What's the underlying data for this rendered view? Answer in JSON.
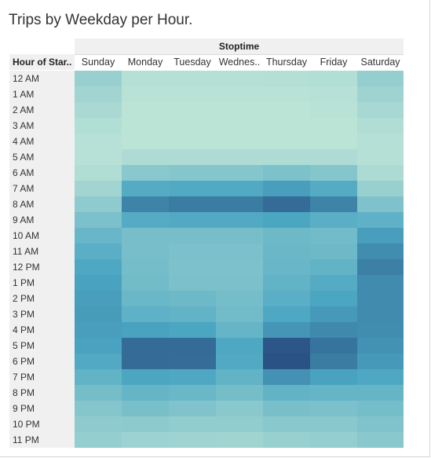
{
  "title": "Trips by Weekday per Hour.",
  "chart_data": {
    "type": "heatmap",
    "column_group_label": "Stoptime",
    "row_header_label": "Hour of Star..",
    "columns": [
      "Sunday",
      "Monday",
      "Tuesday",
      "Wednes..",
      "Thursday",
      "Friday",
      "Saturday"
    ],
    "rows": [
      "12 AM",
      "1 AM",
      "2 AM",
      "3 AM",
      "4 AM",
      "5 AM",
      "6 AM",
      "7 AM",
      "8 AM",
      "9 AM",
      "10 AM",
      "11 AM",
      "12 PM",
      "1 PM",
      "2 PM",
      "3 PM",
      "4 PM",
      "5 PM",
      "6 PM",
      "7 PM",
      "8 PM",
      "9 PM",
      "10 PM",
      "11 PM"
    ],
    "values": [
      [
        0.2,
        0.05,
        0.05,
        0.05,
        0.06,
        0.07,
        0.22
      ],
      [
        0.15,
        0.03,
        0.03,
        0.03,
        0.03,
        0.04,
        0.17
      ],
      [
        0.11,
        0.02,
        0.02,
        0.02,
        0.02,
        0.03,
        0.12
      ],
      [
        0.07,
        0.02,
        0.02,
        0.02,
        0.02,
        0.02,
        0.08
      ],
      [
        0.04,
        0.02,
        0.02,
        0.02,
        0.02,
        0.02,
        0.05
      ],
      [
        0.04,
        0.09,
        0.09,
        0.09,
        0.09,
        0.09,
        0.05
      ],
      [
        0.08,
        0.28,
        0.3,
        0.3,
        0.34,
        0.3,
        0.1
      ],
      [
        0.15,
        0.55,
        0.57,
        0.57,
        0.64,
        0.55,
        0.2
      ],
      [
        0.25,
        0.76,
        0.8,
        0.8,
        0.88,
        0.76,
        0.33
      ],
      [
        0.35,
        0.55,
        0.57,
        0.57,
        0.6,
        0.52,
        0.5
      ],
      [
        0.45,
        0.37,
        0.37,
        0.37,
        0.42,
        0.4,
        0.64
      ],
      [
        0.52,
        0.37,
        0.35,
        0.35,
        0.44,
        0.42,
        0.72
      ],
      [
        0.58,
        0.38,
        0.34,
        0.34,
        0.45,
        0.48,
        0.78
      ],
      [
        0.62,
        0.4,
        0.35,
        0.35,
        0.48,
        0.55,
        0.73
      ],
      [
        0.64,
        0.44,
        0.42,
        0.38,
        0.52,
        0.6,
        0.73
      ],
      [
        0.65,
        0.5,
        0.48,
        0.4,
        0.58,
        0.66,
        0.73
      ],
      [
        0.64,
        0.62,
        0.6,
        0.46,
        0.68,
        0.74,
        0.72
      ],
      [
        0.62,
        0.88,
        0.88,
        0.58,
        0.98,
        0.84,
        0.7
      ],
      [
        0.57,
        0.88,
        0.87,
        0.57,
        1.0,
        0.8,
        0.66
      ],
      [
        0.48,
        0.6,
        0.58,
        0.48,
        0.7,
        0.62,
        0.58
      ],
      [
        0.38,
        0.46,
        0.44,
        0.38,
        0.48,
        0.46,
        0.46
      ],
      [
        0.3,
        0.36,
        0.32,
        0.28,
        0.36,
        0.35,
        0.38
      ],
      [
        0.25,
        0.26,
        0.24,
        0.24,
        0.28,
        0.28,
        0.32
      ],
      [
        0.22,
        0.18,
        0.17,
        0.16,
        0.2,
        0.22,
        0.28
      ]
    ],
    "value_scale": [
      0,
      1
    ],
    "color_scale": {
      "low": "#bfe5d7",
      "mid": "#4ba6c2",
      "high": "#2a5284"
    }
  }
}
